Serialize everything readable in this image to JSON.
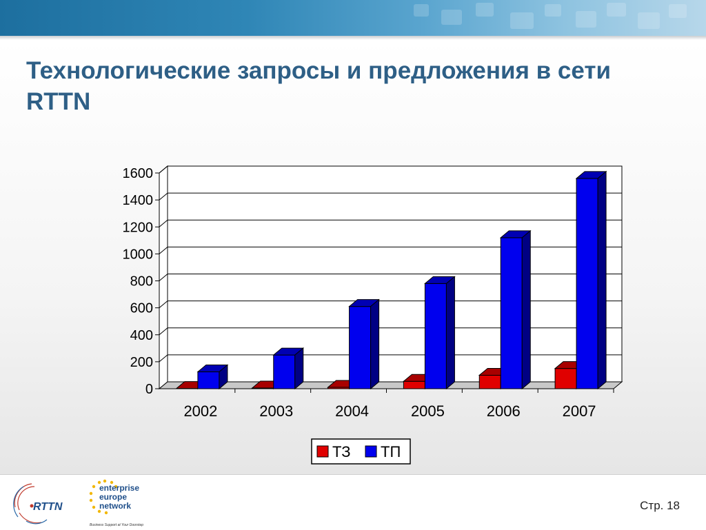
{
  "slide": {
    "title": "Технологические запросы и предложения в сети RTTN",
    "page_number": "Стр. 18"
  },
  "logos": {
    "rttn": "RTTN",
    "een_line1": "enterprise",
    "een_line2": "europe",
    "een_line3": "network",
    "een_tagline": "Business Support at Your Doorstep"
  },
  "colors": {
    "title": "#2e5f86",
    "series_tz": "#e00000",
    "series_tp": "#0000ee"
  },
  "chart_data": {
    "type": "bar",
    "categories": [
      "2002",
      "2003",
      "2004",
      "2005",
      "2006",
      "2007"
    ],
    "series": [
      {
        "name": "ТЗ",
        "values": [
          2,
          5,
          10,
          55,
          100,
          150
        ],
        "color": "#e00000"
      },
      {
        "name": "ТП",
        "values": [
          125,
          250,
          610,
          780,
          1120,
          1560
        ],
        "color": "#0000ee"
      }
    ],
    "yticks": [
      "0",
      "200",
      "400",
      "600",
      "800",
      "1000",
      "1200",
      "1400",
      "1600"
    ],
    "ylim": [
      0,
      1600
    ],
    "grid": true,
    "legend_position": "bottom",
    "style": "3d"
  }
}
